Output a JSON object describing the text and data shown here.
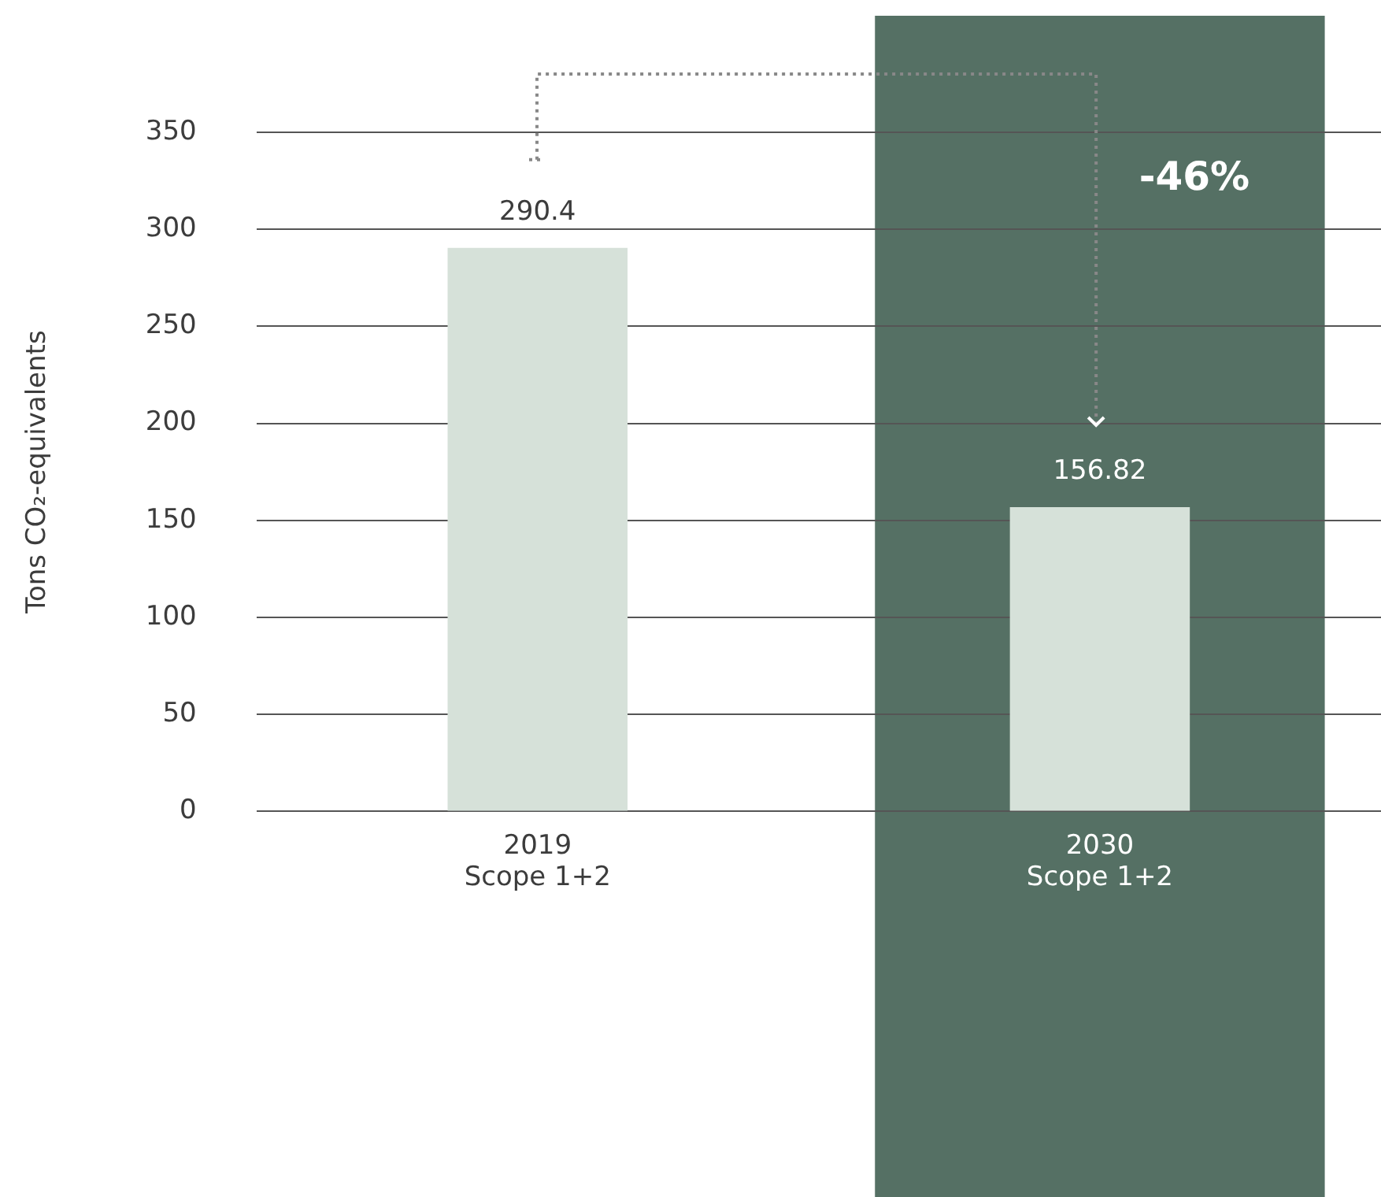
{
  "chart_data": {
    "type": "bar",
    "ylabel": "Tons CO₂-equivalents",
    "categories": [
      "2019\nScope 1+2",
      "2030\nScope 1+2"
    ],
    "values": [
      290.4,
      156.82
    ],
    "color": "#d6e1d9",
    "ylim": [
      0,
      350
    ],
    "yticks": [
      0,
      50,
      100,
      150,
      200,
      250,
      300,
      350
    ],
    "grid": "y",
    "legend": false,
    "data_labels": true,
    "bands": [
      {
        "axis": "x",
        "from": "2030\nScope 1+2",
        "to": "2030\nScope 1+2",
        "color": "#557064"
      }
    ],
    "annotations": [
      "-46%"
    ]
  }
}
